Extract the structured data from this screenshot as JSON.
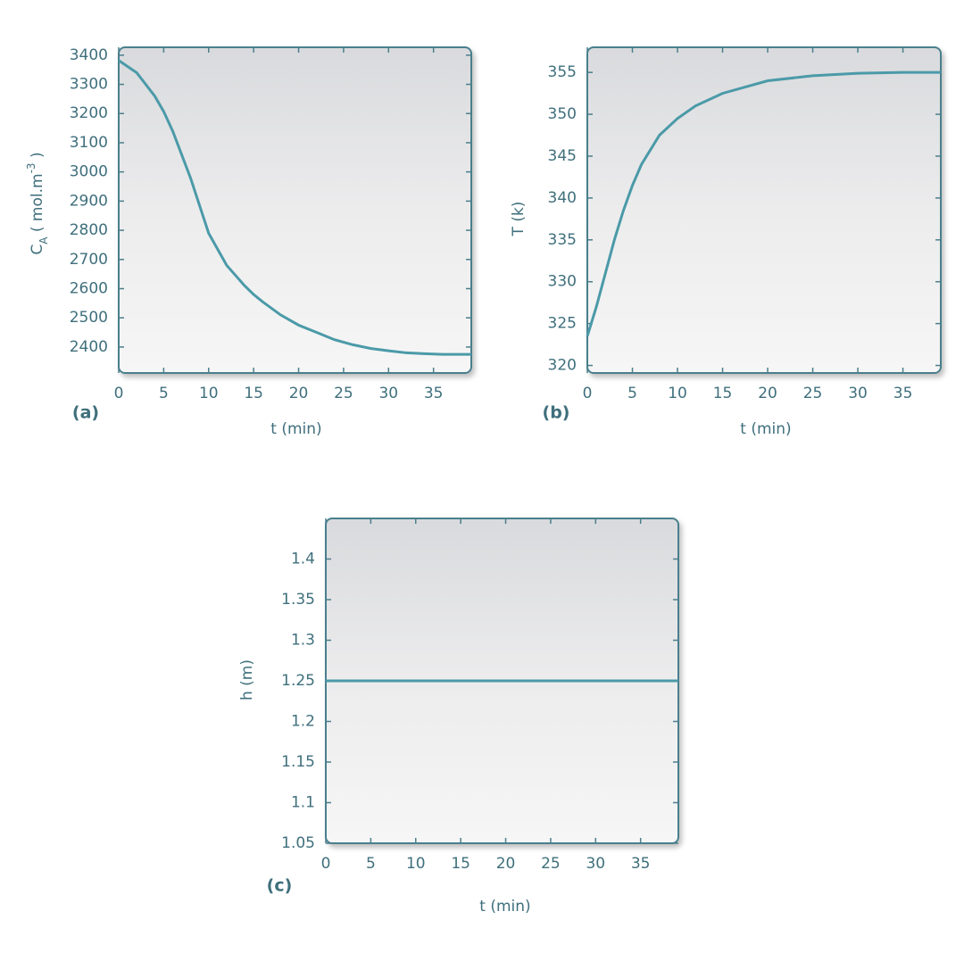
{
  "chart_data": [
    {
      "type": "line",
      "panel": "(a)",
      "xlabel": "t (min)",
      "ylabel": [
        "C",
        "A",
        " ( mol.m",
        "-3",
        " )"
      ],
      "x": [
        0,
        2,
        4,
        5,
        6,
        8,
        10,
        12,
        14,
        15,
        16,
        18,
        20,
        22,
        24,
        26,
        28,
        30,
        32,
        34,
        36,
        39.2
      ],
      "series": [
        {
          "color": "#4b9aa8",
          "values": [
            3382,
            3340,
            3260,
            3207,
            3140,
            2978,
            2790,
            2680,
            2610,
            2580,
            2555,
            2510,
            2475,
            2450,
            2425,
            2408,
            2395,
            2387,
            2380,
            2377,
            2375,
            2375
          ]
        }
      ],
      "xlim": [
        0,
        39.2
      ],
      "xticks": [
        0,
        5,
        10,
        15,
        20,
        25,
        30,
        35
      ],
      "ylim": [
        2311,
        3427
      ],
      "yticks": [
        2400,
        2500,
        2600,
        2700,
        2800,
        2900,
        3000,
        3100,
        3200,
        3300,
        3400
      ]
    },
    {
      "type": "line",
      "panel": "(b)",
      "xlabel": "t (min)",
      "ylabel": [
        "T (k)"
      ],
      "x": [
        0,
        1,
        2,
        3,
        4,
        5,
        6,
        8,
        10,
        12,
        15,
        20,
        25,
        30,
        35,
        39.2
      ],
      "series": [
        {
          "color": "#4b9aa8",
          "values": [
            323.5,
            327,
            331,
            335,
            338.5,
            341.5,
            344,
            347.5,
            349.5,
            351,
            352.5,
            354,
            354.6,
            354.9,
            355,
            355
          ]
        }
      ],
      "xlim": [
        0,
        39.2
      ],
      "xticks": [
        0,
        5,
        10,
        15,
        20,
        25,
        30,
        35
      ],
      "ylim": [
        319.1,
        358
      ],
      "yticks": [
        320,
        325,
        330,
        335,
        340,
        345,
        350,
        355
      ]
    },
    {
      "type": "line",
      "panel": "(c)",
      "xlabel": "t (min)",
      "ylabel": [
        "h (m)"
      ],
      "x": [
        0,
        39.2
      ],
      "series": [
        {
          "color": "#4b9aa8",
          "values": [
            1.25,
            1.25
          ]
        }
      ],
      "xlim": [
        0,
        39.2
      ],
      "xticks": [
        0,
        5,
        10,
        15,
        20,
        25,
        30,
        35
      ],
      "ylim": [
        1.05,
        1.45
      ],
      "yticks": [
        1.05,
        1.1,
        1.15,
        1.2,
        1.25,
        1.3,
        1.35,
        1.4
      ]
    }
  ]
}
